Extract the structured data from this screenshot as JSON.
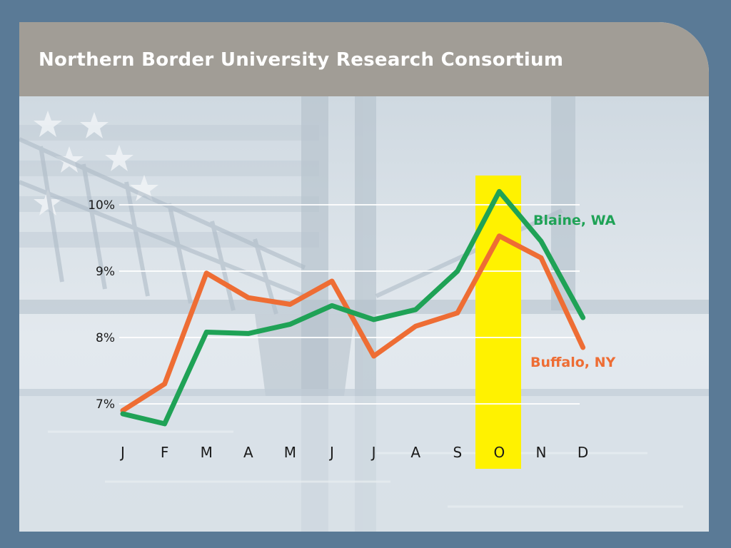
{
  "slide": {
    "title": "Northern Border University Research Consortium"
  },
  "colors": {
    "background": "#5a7a96",
    "title_bar": "#a19d96",
    "highlight": "#fff200",
    "blaine": "#1fa256",
    "buffalo": "#ee6d34"
  },
  "chart_data": {
    "type": "line",
    "categories": [
      "J",
      "F",
      "M",
      "A",
      "M",
      "J",
      "J",
      "A",
      "S",
      "O",
      "N",
      "D"
    ],
    "y_ticks": [
      "7%",
      "8%",
      "9%",
      "10%"
    ],
    "ylim": [
      6.7,
      10.2
    ],
    "grid": true,
    "highlight_category": "O",
    "series": [
      {
        "name": "Blaine, WA",
        "color": "#1fa256",
        "values": [
          6.85,
          6.7,
          8.08,
          8.06,
          8.2,
          8.48,
          8.27,
          8.42,
          9.0,
          10.2,
          9.45,
          8.3
        ]
      },
      {
        "name": "Buffalo, NY",
        "color": "#ee6d34",
        "values": [
          6.9,
          7.3,
          8.97,
          8.6,
          8.5,
          8.85,
          7.72,
          8.17,
          8.37,
          9.53,
          9.2,
          7.85
        ]
      }
    ]
  }
}
